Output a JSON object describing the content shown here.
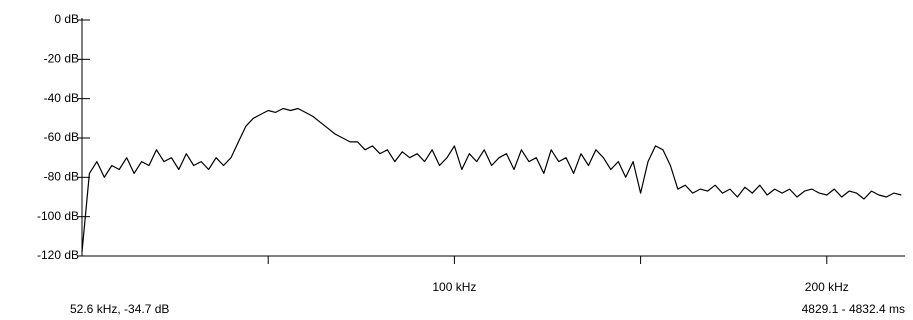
{
  "chart_data": {
    "type": "line",
    "x": [
      0,
      2,
      4,
      6,
      8,
      10,
      12,
      14,
      16,
      18,
      20,
      22,
      24,
      26,
      28,
      30,
      32,
      34,
      36,
      38,
      40,
      42,
      44,
      46,
      48,
      50,
      52,
      54,
      56,
      58,
      60,
      62,
      64,
      66,
      68,
      70,
      72,
      74,
      76,
      78,
      80,
      82,
      84,
      86,
      88,
      90,
      92,
      94,
      96,
      98,
      100,
      102,
      104,
      106,
      108,
      110,
      112,
      114,
      116,
      118,
      120,
      122,
      124,
      126,
      128,
      130,
      132,
      134,
      136,
      138,
      140,
      142,
      144,
      146,
      148,
      150,
      152,
      154,
      156,
      158,
      160,
      162,
      164,
      166,
      168,
      170,
      172,
      174,
      176,
      178,
      180,
      182,
      184,
      186,
      188,
      190,
      192,
      194,
      196,
      198,
      200,
      202,
      204,
      206,
      208,
      210,
      212,
      214,
      216,
      218,
      220
    ],
    "series": [
      {
        "color": "#000000",
        "values": [
          -118,
          -78,
          -72,
          -80,
          -74,
          -76,
          -70,
          -78,
          -72,
          -74,
          -66,
          -72,
          -70,
          -76,
          -68,
          -74,
          -72,
          -76,
          -70,
          -74,
          -70,
          -62,
          -54,
          -50,
          -48,
          -46,
          -47,
          -45,
          -46,
          -45,
          -47,
          -49,
          -52,
          -55,
          -58,
          -60,
          -62,
          -62,
          -66,
          -64,
          -68,
          -66,
          -72,
          -67,
          -70,
          -68,
          -72,
          -66,
          -74,
          -70,
          -64,
          -76,
          -68,
          -72,
          -66,
          -74,
          -70,
          -68,
          -76,
          -66,
          -72,
          -70,
          -78,
          -66,
          -72,
          -70,
          -78,
          -68,
          -74,
          -66,
          -70,
          -76,
          -72,
          -80,
          -72,
          -88,
          -72,
          -64,
          -66,
          -74,
          -86,
          -84,
          -88,
          -86,
          -87,
          -84,
          -88,
          -86,
          -90,
          -85,
          -88,
          -84,
          -89,
          -86,
          -88,
          -86,
          -90,
          -87,
          -86,
          -88,
          -89,
          -86,
          -90,
          -87,
          -88,
          -91,
          -87,
          -89,
          -90,
          -88,
          -89
        ]
      }
    ],
    "xlim": [
      0,
      221
    ],
    "xticks": [
      {
        "value": 100,
        "label": "100 kHz"
      },
      {
        "value": 200,
        "label": "200 kHz"
      }
    ],
    "xminorticks": [
      50,
      150
    ],
    "ylim": [
      -120,
      0
    ],
    "yticks": [
      {
        "value": 0,
        "label": "0 dB"
      },
      {
        "value": -20,
        "label": "-20 dB"
      },
      {
        "value": -40,
        "label": "-40 dB"
      },
      {
        "value": -60,
        "label": "-60 dB"
      },
      {
        "value": -80,
        "label": "-80 dB"
      },
      {
        "value": -100,
        "label": "-100 dB"
      },
      {
        "value": -120,
        "label": "-120 dB"
      }
    ],
    "cursor_readout": "52.6 kHz, -34.7 dB",
    "time_range": "4829.1 - 4832.4 ms"
  }
}
